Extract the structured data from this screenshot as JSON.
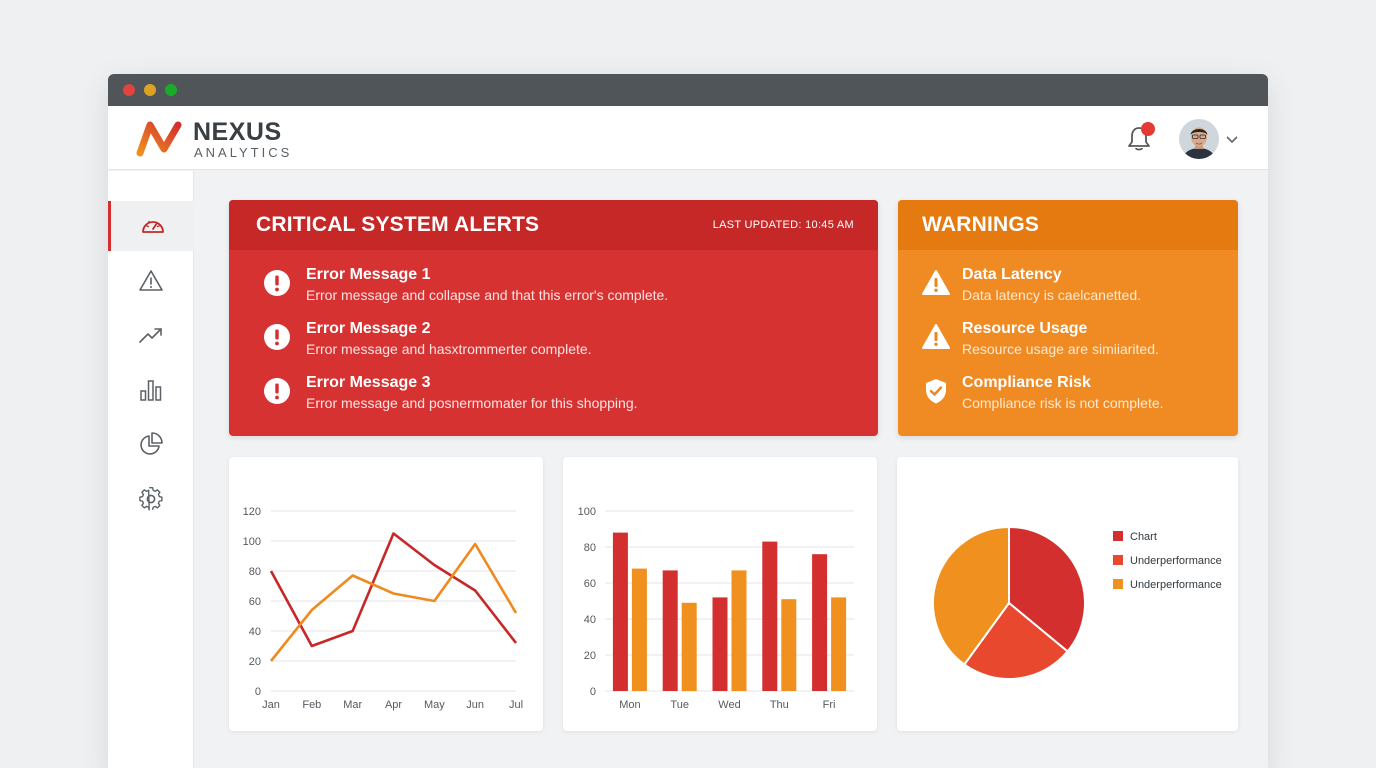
{
  "window": {
    "controls": [
      "#e0443e",
      "#dea123",
      "#1aab29"
    ]
  },
  "brand": {
    "name": "NEXUS",
    "subtitle": "ANALYTICS"
  },
  "header": {
    "notification_icon": "bell-icon",
    "has_notification": true
  },
  "sidebar": {
    "items": [
      {
        "name": "dashboard",
        "icon": "speedometer-icon",
        "active": true
      },
      {
        "name": "alerts",
        "icon": "warning-icon",
        "active": false
      },
      {
        "name": "trends",
        "icon": "trend-up-icon",
        "active": false
      },
      {
        "name": "reports",
        "icon": "bar-chart-icon",
        "active": false
      },
      {
        "name": "analytics",
        "icon": "pie-chart-icon",
        "active": false
      },
      {
        "name": "settings",
        "icon": "gear-icon",
        "active": false
      }
    ]
  },
  "critical": {
    "title": "CRITICAL SYSTEM ALERTS",
    "last_updated": "LAST UPDATED: 10:45 AM",
    "items": [
      {
        "title": "Error Message 1",
        "desc": "Error message and collapse and that this error's complete."
      },
      {
        "title": "Error Message 2",
        "desc": "Error message and hasxtrommerter complete."
      },
      {
        "title": "Error Message 3",
        "desc": "Error message and posnermomater for this shopping."
      }
    ]
  },
  "warnings": {
    "title": "WARNINGS",
    "items": [
      {
        "title": "Data Latency",
        "desc": "Data latency is caelcanetted.",
        "icon": "warning-icon"
      },
      {
        "title": "Resource Usage",
        "desc": "Resource usage are simiiarited.",
        "icon": "warning-icon"
      },
      {
        "title": "Compliance Risk",
        "desc": "Compliance risk is not complete.",
        "icon": "shield-check-icon"
      }
    ]
  },
  "colors": {
    "red": "#d32f2f",
    "orange": "#f0901e",
    "red_orange": "#e8492e"
  },
  "chart_data": [
    {
      "type": "line",
      "x": [
        "Jan",
        "Feb",
        "Mar",
        "Apr",
        "May",
        "Jun",
        "Jul"
      ],
      "ylim": [
        0,
        120
      ],
      "yticks": [
        0,
        20,
        40,
        60,
        80,
        100,
        120
      ],
      "grid": true,
      "series": [
        {
          "values": [
            80,
            30,
            40,
            105,
            84,
            67,
            32
          ],
          "color": "#c62828"
        },
        {
          "values": [
            20,
            54,
            77,
            65,
            60,
            98,
            52
          ],
          "color": "#ef8a1e"
        }
      ]
    },
    {
      "type": "bar",
      "categories": [
        "Mon",
        "Tue",
        "Wed",
        "Thu",
        "Fri"
      ],
      "ylim": [
        0,
        100
      ],
      "yticks": [
        0,
        20,
        40,
        60,
        80,
        100
      ],
      "grid": true,
      "series": [
        {
          "values": [
            88,
            67,
            52,
            83,
            76
          ],
          "color": "#d32f2f"
        },
        {
          "values": [
            68,
            49,
            67,
            51,
            52
          ],
          "color": "#f0901e"
        }
      ]
    },
    {
      "type": "pie",
      "legend_position": "right",
      "slices": [
        {
          "label": "Chart",
          "value": 36,
          "color": "#d32f2f"
        },
        {
          "label": "Underperformance",
          "value": 24,
          "color": "#e8492e"
        },
        {
          "label": "Underperformance",
          "value": 40,
          "color": "#f0901e"
        }
      ]
    }
  ]
}
